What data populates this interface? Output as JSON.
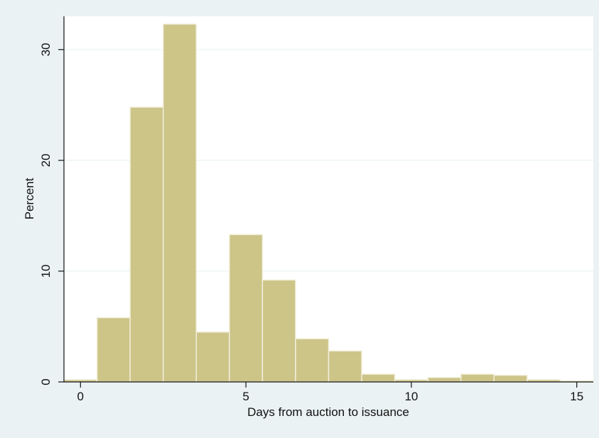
{
  "chart_data": {
    "type": "bar",
    "title": "",
    "xlabel": "Days from auction to issuance",
    "ylabel": "Percent",
    "bin_width": 1,
    "x": [
      0,
      1,
      2,
      3,
      4,
      5,
      6,
      7,
      8,
      9,
      10,
      11,
      12,
      13,
      14,
      15
    ],
    "values": [
      0.2,
      5.8,
      24.8,
      32.3,
      4.5,
      13.3,
      9.2,
      3.9,
      2.8,
      0.7,
      0.2,
      0.4,
      0.7,
      0.6,
      0.2,
      0.1
    ],
    "xlim": [
      -0.5,
      15.5
    ],
    "ylim": [
      0,
      33
    ],
    "xticks": [
      0,
      5,
      10,
      15
    ],
    "yticks": [
      0,
      10,
      20,
      30
    ],
    "grid": true,
    "legend": "none",
    "colors": {
      "bar_fill": "#cdc488",
      "bar_stroke": "#f1efdb",
      "plot_background": "#ffffff",
      "outer_background": "#eaf2f3",
      "gridline": "#eaf2f3",
      "axis": "#111111"
    }
  }
}
